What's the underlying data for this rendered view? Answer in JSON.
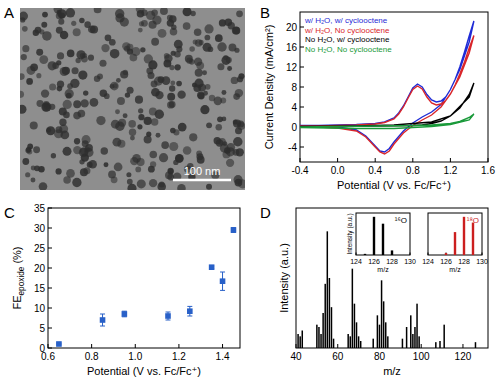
{
  "chart_data": [
    {
      "type": "image",
      "panel_label": "A",
      "scale_bar_label": "100 nm"
    },
    {
      "type": "line",
      "panel_label": "B",
      "x_label": "Potential (V vs. Fc/Fc⁺)",
      "y_label": "Current Density (mA/cm²)",
      "xlim": [
        -0.4,
        1.6
      ],
      "xticks": [
        -0.4,
        {
          "value": 0,
          "label": "0.0"
        },
        0.4,
        0.8,
        1.2,
        1.6
      ],
      "ylim": [
        -7,
        23
      ],
      "yticks": [
        -4,
        0,
        4,
        8,
        12,
        16,
        20
      ],
      "legend": "upper left",
      "series": [
        {
          "name": "w/ H₂O, w/ cyclooctene",
          "color": "#1f2bd6",
          "x": [
            -0.4,
            -0.2,
            0,
            0.2,
            0.4,
            0.5,
            0.6,
            0.65,
            0.7,
            0.75,
            0.8,
            0.85,
            0.9,
            0.95,
            1.0,
            1.05,
            1.1,
            1.15,
            1.2,
            1.25,
            1.3,
            1.35,
            1.4,
            1.45,
            1.4,
            1.3,
            1.2,
            1.1,
            1.0,
            0.9,
            0.8,
            0.7,
            0.6,
            0.55,
            0.5,
            0.45,
            0.4,
            0.3,
            0.2,
            0.0,
            -0.2,
            -0.4
          ],
          "values": [
            0.3,
            0.3,
            0.4,
            0.5,
            0.7,
            1.0,
            1.8,
            2.8,
            4.2,
            6.0,
            7.8,
            8.6,
            8.0,
            6.5,
            5.4,
            5.0,
            5.2,
            6.0,
            7.5,
            9.5,
            12.0,
            15.0,
            18.2,
            21.2,
            17.0,
            11.5,
            7.5,
            4.5,
            3.0,
            2.0,
            0.8,
            -0.8,
            -3.0,
            -4.3,
            -5.0,
            -4.8,
            -3.8,
            -1.8,
            -0.6,
            0.0,
            0.1,
            0.3
          ]
        },
        {
          "name": "w/ H₂O, No cyclooctene",
          "color": "#d9262b",
          "x": [
            -0.4,
            -0.2,
            0,
            0.2,
            0.4,
            0.5,
            0.6,
            0.65,
            0.7,
            0.75,
            0.8,
            0.85,
            0.9,
            0.95,
            1.0,
            1.05,
            1.1,
            1.15,
            1.2,
            1.25,
            1.3,
            1.35,
            1.4,
            1.45,
            1.4,
            1.3,
            1.2,
            1.1,
            1.0,
            0.9,
            0.8,
            0.7,
            0.6,
            0.55,
            0.5,
            0.45,
            0.4,
            0.3,
            0.2,
            0.0,
            -0.2,
            -0.4
          ],
          "values": [
            0.2,
            0.2,
            0.3,
            0.4,
            0.6,
            0.9,
            1.6,
            2.6,
            4.0,
            5.8,
            7.5,
            8.2,
            7.6,
            6.0,
            4.8,
            4.4,
            4.6,
            5.3,
            6.6,
            8.4,
            10.6,
            13.0,
            15.8,
            18.3,
            14.8,
            10.0,
            6.6,
            4.0,
            2.4,
            1.4,
            0.3,
            -1.2,
            -3.4,
            -4.8,
            -5.4,
            -5.0,
            -4.0,
            -2.0,
            -0.8,
            -0.2,
            0.0,
            0.2
          ]
        },
        {
          "name": "No H₂O, w/ cyclooctene",
          "color": "#000000",
          "x": [
            -0.4,
            0,
            0.4,
            0.8,
            0.9,
            1.0,
            1.1,
            1.2,
            1.3,
            1.4,
            1.45,
            1.4,
            1.2,
            1.0,
            0.6,
            0.2,
            -0.4
          ],
          "values": [
            0.1,
            0.1,
            0.2,
            0.3,
            0.4,
            0.7,
            1.2,
            2.2,
            3.8,
            6.5,
            8.8,
            6.0,
            2.2,
            1.0,
            0.4,
            0.2,
            0.1
          ]
        },
        {
          "name": "No H₂O, No cyclooctene",
          "color": "#1a9a3a",
          "x": [
            -0.4,
            0,
            0.4,
            0.8,
            1.0,
            1.2,
            1.3,
            1.4,
            1.45,
            1.4,
            1.2,
            1.0,
            0.6,
            0.2,
            -0.4
          ],
          "values": [
            0.0,
            0.1,
            0.2,
            0.3,
            0.4,
            0.7,
            1.1,
            1.9,
            2.6,
            1.4,
            0.5,
            0.1,
            -0.3,
            -0.3,
            -0.1
          ]
        }
      ]
    },
    {
      "type": "scatter",
      "panel_label": "C",
      "x_label": "Potential (V vs. Fc/Fc⁺)",
      "y_label": {
        "text": "FE",
        "sub": "epoxide",
        "suffix": "(%)"
      },
      "xlim": [
        0.6,
        1.48
      ],
      "xticks": [
        0.6,
        0.8,
        {
          "value": 1,
          "label": "1.0"
        },
        1.2,
        1.4
      ],
      "ylim": [
        0,
        35
      ],
      "yticks": [
        0,
        5,
        10,
        15,
        20,
        25,
        30,
        35
      ],
      "x": [
        0.65,
        0.85,
        0.95,
        1.15,
        1.25,
        1.35,
        1.4,
        1.45
      ],
      "values": [
        1.0,
        7.0,
        8.5,
        8.0,
        9.2,
        20.2,
        16.7,
        29.5
      ],
      "errors": [
        0.2,
        1.5,
        0.7,
        1.0,
        1.2,
        0.3,
        2.3,
        0.6
      ],
      "color": "#2860c8",
      "marker": "square"
    },
    {
      "type": "bar",
      "panel_label": "D",
      "x_label": "m/z",
      "y_label": "Intensity (a.u.)",
      "xlim": [
        40,
        132
      ],
      "xticks": [
        40,
        60,
        80,
        100,
        120
      ],
      "ylim": [
        0,
        1.2
      ],
      "tick_labels": "x",
      "x": [
        41,
        42,
        43,
        50,
        51,
        52,
        53,
        54,
        55,
        56,
        57,
        58,
        65,
        66,
        67,
        68,
        69,
        70,
        71,
        77,
        79,
        80,
        81,
        82,
        83,
        84,
        91,
        93,
        95,
        96,
        97,
        98,
        99,
        107,
        109,
        111,
        126
      ],
      "values": [
        0.12,
        0.1,
        0.15,
        0.2,
        0.18,
        0.12,
        0.3,
        0.55,
        1.0,
        0.6,
        0.35,
        0.08,
        0.12,
        0.1,
        0.68,
        0.38,
        0.22,
        0.1,
        0.06,
        0.08,
        0.28,
        0.2,
        0.58,
        0.4,
        0.22,
        0.1,
        0.08,
        0.18,
        0.28,
        0.12,
        0.18,
        0.38,
        0.1,
        0.05,
        0.06,
        0.2,
        0.05
      ],
      "color": "#000000"
    },
    {
      "type": "bar",
      "title": "¹⁶O",
      "x_label": "m/z",
      "y_label": "Intensity (a.u.)",
      "xlim": [
        124,
        130
      ],
      "xticks": [
        124,
        126,
        128,
        130
      ],
      "ylim": [
        0,
        1.1
      ],
      "tick_labels": "x",
      "x": [
        125,
        126,
        127,
        128
      ],
      "values": [
        0.03,
        1.0,
        0.82,
        0.12
      ],
      "color": "#000000"
    },
    {
      "type": "bar",
      "title": "¹⁸O",
      "x_label": "m/z",
      "xlim": [
        124,
        130
      ],
      "xticks": [
        124,
        126,
        128,
        130
      ],
      "ylim": [
        0,
        1.1
      ],
      "tick_labels": "x",
      "x": [
        126,
        127,
        128,
        129
      ],
      "values": [
        0.05,
        0.6,
        1.0,
        0.85
      ],
      "color": "#cc1f1f"
    }
  ]
}
